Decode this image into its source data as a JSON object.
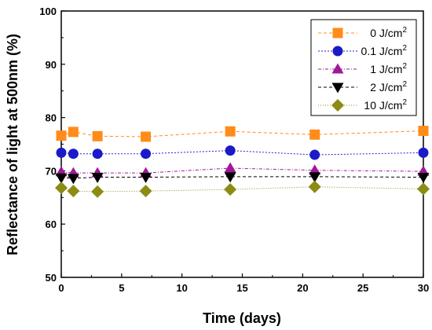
{
  "chart_data": {
    "type": "line",
    "xlabel": "Time (days)",
    "ylabel": "Reflectance of light at 500nm (%)",
    "xlim": [
      0,
      30
    ],
    "ylim": [
      50,
      100
    ],
    "xticks": [
      0,
      5,
      10,
      15,
      20,
      25,
      30
    ],
    "yticks": [
      50,
      60,
      70,
      80,
      90,
      100
    ],
    "grid": false,
    "legend_position": "top-right",
    "x": [
      0,
      1,
      3,
      7,
      14,
      21,
      30
    ],
    "series": [
      {
        "name": "0 J/cm",
        "sup": "2",
        "marker": "square",
        "color": "#ff8c1a",
        "line": "#ff8c1a",
        "values": [
          76.6,
          77.3,
          76.5,
          76.4,
          77.4,
          76.8,
          77.5
        ]
      },
      {
        "name": "0.1 J/cm",
        "sup": "2",
        "marker": "circle",
        "color": "#1a1ac8",
        "line": "#2020d0",
        "values": [
          73.4,
          73.2,
          73.2,
          73.2,
          73.8,
          73.0,
          73.4
        ]
      },
      {
        "name": "1 J/cm",
        "sup": "2",
        "marker": "triangle-up",
        "color": "#a0189a",
        "line": "#a0189a",
        "values": [
          69.8,
          69.6,
          69.6,
          69.6,
          70.5,
          70.1,
          69.9
        ]
      },
      {
        "name": "2 J/cm",
        "sup": "2",
        "marker": "triangle-down",
        "color": "#000000",
        "line": "#000000",
        "values": [
          68.7,
          68.6,
          68.8,
          68.8,
          68.9,
          68.9,
          68.8
        ]
      },
      {
        "name": "10 J/cm",
        "sup": "2",
        "marker": "diamond",
        "color": "#8c8c14",
        "line": "#8c8c14",
        "values": [
          66.8,
          66.2,
          66.1,
          66.2,
          66.5,
          67.0,
          66.6
        ]
      }
    ]
  }
}
